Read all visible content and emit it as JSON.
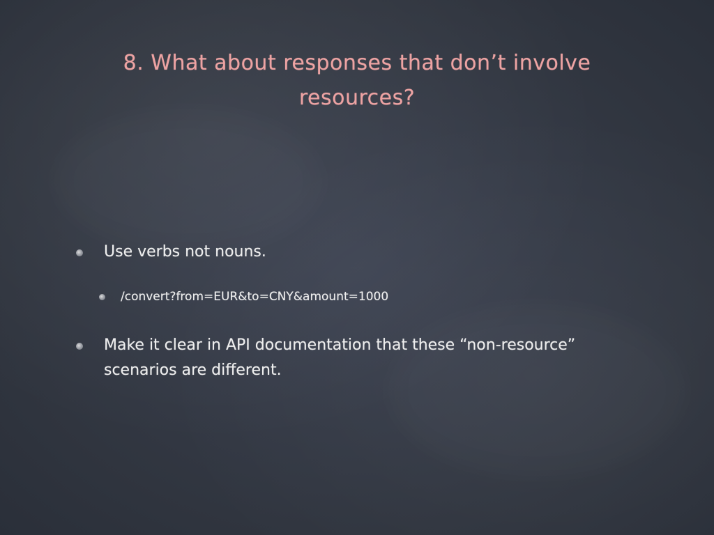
{
  "slide": {
    "title": "8. What about responses that don’t involve resources?",
    "bullets": [
      {
        "level": 1,
        "text": "Use verbs not nouns."
      },
      {
        "level": 2,
        "text": "/convert?from=EUR&to=CNY&amount=1000"
      },
      {
        "level": 1,
        "text": "Make it clear in API documentation that these “non-resource” scenarios are different."
      }
    ],
    "colors": {
      "background": "#343a48",
      "title": "#eda3a3",
      "body_text": "#eeeeee"
    }
  }
}
